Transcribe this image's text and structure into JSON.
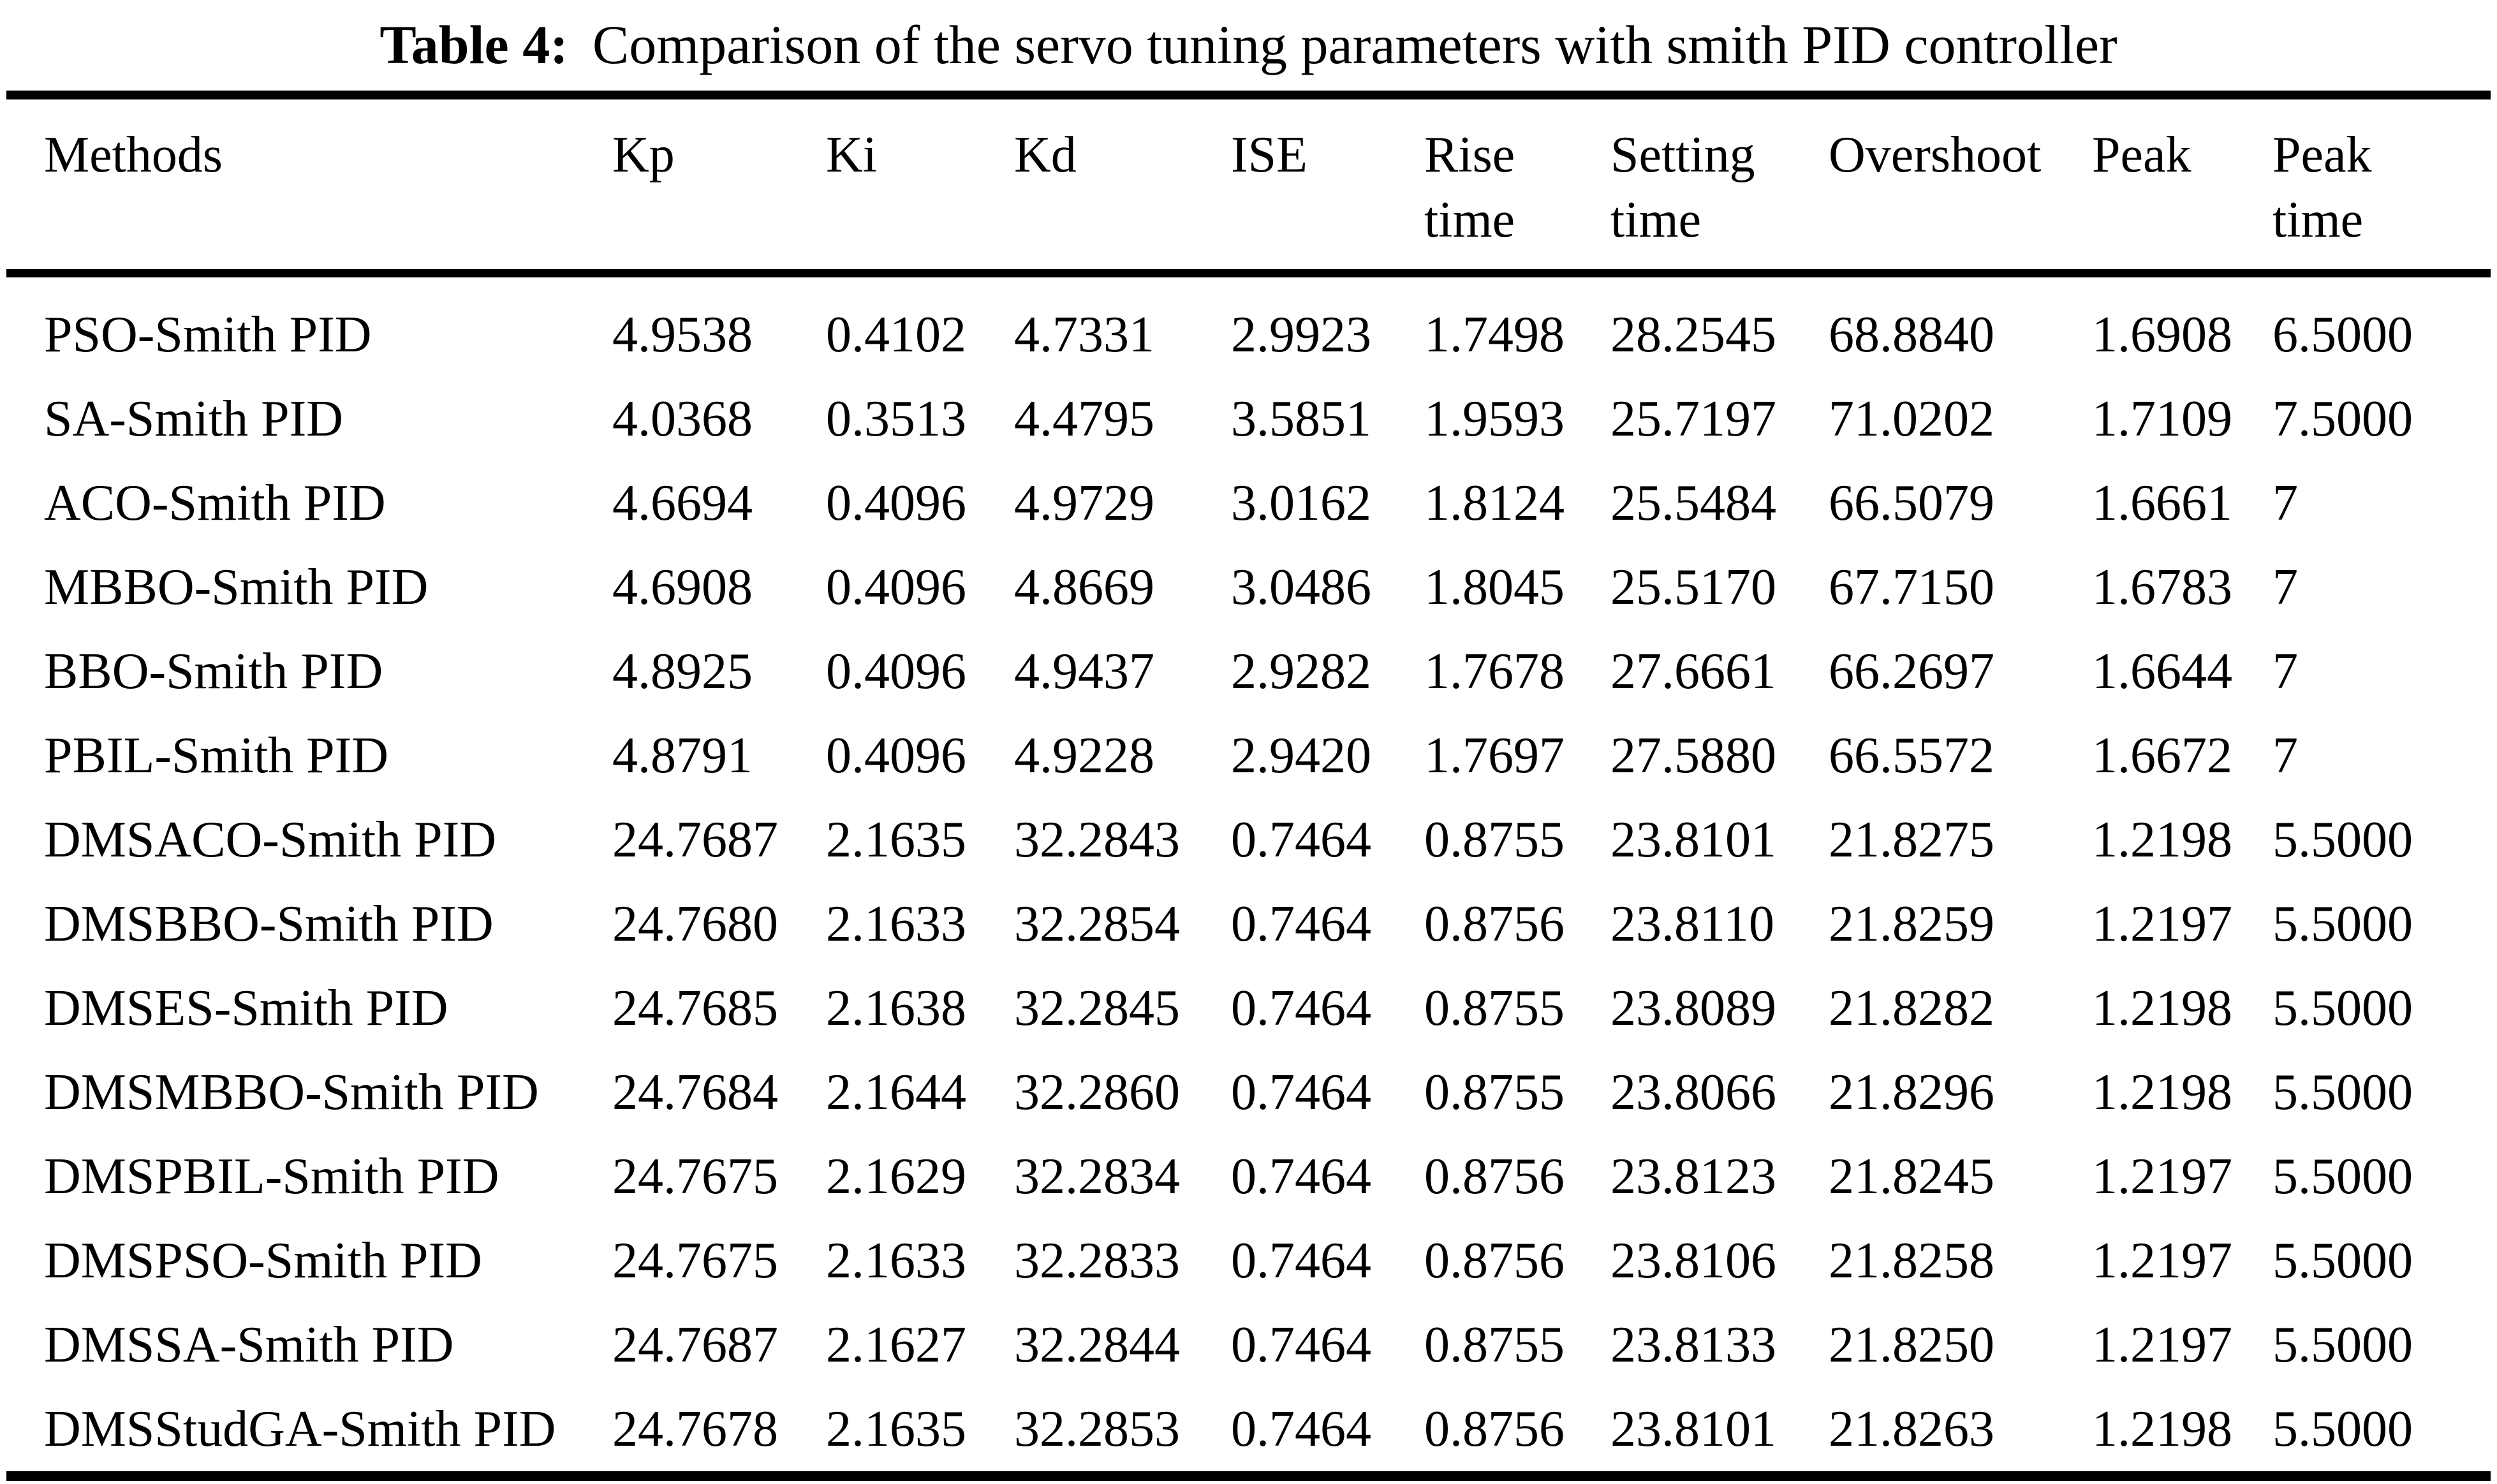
{
  "page": {
    "background_color": "#ffffff",
    "text_color": "#000000"
  },
  "caption": {
    "label": "Table 4:",
    "text": "Comparison of the servo tuning parameters with smith PID controller"
  },
  "table": {
    "column_names": [
      "Methods",
      "Kp",
      "Ki",
      "Kd",
      "ISE",
      "Rise time",
      "Setting time",
      "Overshoot",
      "Peak",
      "Peak time"
    ],
    "headers": [
      {
        "line1": "Methods",
        "line2": ""
      },
      {
        "line1": "Kp",
        "line2": ""
      },
      {
        "line1": "Ki",
        "line2": ""
      },
      {
        "line1": "Kd",
        "line2": ""
      },
      {
        "line1": "ISE",
        "line2": ""
      },
      {
        "line1": "Rise",
        "line2": "time"
      },
      {
        "line1": "Setting",
        "line2": "time"
      },
      {
        "line1": "Overshoot",
        "line2": ""
      },
      {
        "line1": "Peak",
        "line2": ""
      },
      {
        "line1": "Peak",
        "line2": "time"
      }
    ],
    "rows": [
      [
        "PSO-Smith PID",
        "4.9538",
        "0.4102",
        "4.7331",
        "2.9923",
        "1.7498",
        "28.2545",
        "68.8840",
        "1.6908",
        "6.5000"
      ],
      [
        "SA-Smith PID",
        "4.0368",
        "0.3513",
        "4.4795",
        "3.5851",
        "1.9593",
        "25.7197",
        "71.0202",
        "1.7109",
        "7.5000"
      ],
      [
        "ACO-Smith PID",
        "4.6694",
        "0.4096",
        "4.9729",
        "3.0162",
        "1.8124",
        "25.5484",
        "66.5079",
        "1.6661",
        "7"
      ],
      [
        "MBBO-Smith PID",
        "4.6908",
        "0.4096",
        "4.8669",
        "3.0486",
        "1.8045",
        "25.5170",
        "67.7150",
        "1.6783",
        "7"
      ],
      [
        "BBO-Smith PID",
        "4.8925",
        "0.4096",
        "4.9437",
        "2.9282",
        "1.7678",
        "27.6661",
        "66.2697",
        "1.6644",
        "7"
      ],
      [
        "PBIL-Smith PID",
        "4.8791",
        "0.4096",
        "4.9228",
        "2.9420",
        "1.7697",
        "27.5880",
        "66.5572",
        "1.6672",
        "7"
      ],
      [
        "DMSACO-Smith PID",
        "24.7687",
        "2.1635",
        "32.2843",
        "0.7464",
        "0.8755",
        "23.8101",
        "21.8275",
        "1.2198",
        "5.5000"
      ],
      [
        "DMSBBO-Smith PID",
        "24.7680",
        "2.1633",
        "32.2854",
        "0.7464",
        "0.8756",
        "23.8110",
        "21.8259",
        "1.2197",
        "5.5000"
      ],
      [
        "DMSES-Smith PID",
        "24.7685",
        "2.1638",
        "32.2845",
        "0.7464",
        "0.8755",
        "23.8089",
        "21.8282",
        "1.2198",
        "5.5000"
      ],
      [
        "DMSMBBO-Smith PID",
        "24.7684",
        "2.1644",
        "32.2860",
        "0.7464",
        "0.8755",
        "23.8066",
        "21.8296",
        "1.2198",
        "5.5000"
      ],
      [
        "DMSPBIL-Smith PID",
        "24.7675",
        "2.1629",
        "32.2834",
        "0.7464",
        "0.8756",
        "23.8123",
        "21.8245",
        "1.2197",
        "5.5000"
      ],
      [
        "DMSPSO-Smith PID",
        "24.7675",
        "2.1633",
        "32.2833",
        "0.7464",
        "0.8756",
        "23.8106",
        "21.8258",
        "1.2197",
        "5.5000"
      ],
      [
        "DMSSA-Smith PID",
        "24.7687",
        "2.1627",
        "32.2844",
        "0.7464",
        "0.8755",
        "23.8133",
        "21.8250",
        "1.2197",
        "5.5000"
      ],
      [
        "DMSStudGA-Smith PID",
        "24.7678",
        "2.1635",
        "32.2853",
        "0.7464",
        "0.8756",
        "23.8101",
        "21.8263",
        "1.2198",
        "5.5000"
      ]
    ]
  }
}
